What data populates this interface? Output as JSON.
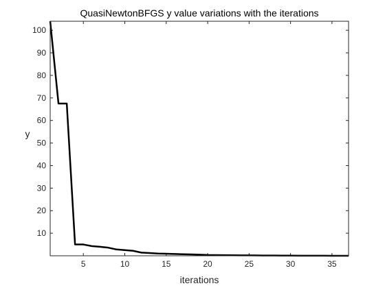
{
  "chart_data": {
    "type": "line",
    "title": "QuasiNewtonBFGS y value variations with the iterations",
    "xlabel": "iterations",
    "ylabel": "y",
    "xlim": [
      1,
      37
    ],
    "ylim": [
      0,
      104
    ],
    "xticks": [
      5,
      10,
      15,
      20,
      25,
      30,
      35
    ],
    "yticks": [
      10,
      20,
      30,
      40,
      50,
      60,
      70,
      80,
      90,
      100
    ],
    "grid": false,
    "line_color": "#000000",
    "series": [
      {
        "x": [
          1,
          2,
          3,
          4,
          5,
          6,
          7,
          8,
          9,
          10,
          11,
          12,
          13,
          14,
          15,
          16,
          17,
          18,
          19,
          20,
          21,
          22,
          23,
          24,
          25,
          26,
          27,
          28,
          29,
          30,
          31,
          32,
          33,
          34,
          35,
          36,
          37
        ],
        "y": [
          104,
          67.5,
          67.5,
          5,
          5,
          4.3,
          4.0,
          3.6,
          2.8,
          2.5,
          2.2,
          1.4,
          1.2,
          1.0,
          0.9,
          0.8,
          0.7,
          0.6,
          0.5,
          0.35,
          0.3,
          0.25,
          0.22,
          0.2,
          0.18,
          0.15,
          0.12,
          0.1,
          0.08,
          0.06,
          0.05,
          0.04,
          0.03,
          0.02,
          0.01,
          0.01,
          0.01
        ]
      }
    ]
  }
}
